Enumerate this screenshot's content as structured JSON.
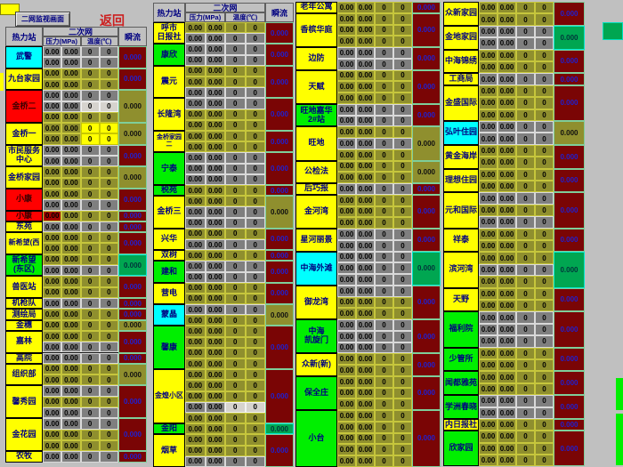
{
  "topbar": {
    "monitor_button": "二网监视画面",
    "return_label": "返回"
  },
  "header_labels": {
    "station": "热力站",
    "network": "二次网",
    "pressure": "压力(MPa)",
    "temperature": "温度(℃)",
    "flow": "瞬流"
  },
  "defaults": {
    "pressure": "0.00",
    "temperature": "0",
    "flow": "0.000"
  },
  "palette": {
    "background": "#c0c0c0",
    "station_yellow": "#ffff00",
    "station_green": "#00ef00",
    "station_cyan": "#00ffff",
    "station_red": "#ff0000",
    "cell_olive": "#8f8f2e",
    "cell_gray": "#7f7f7f",
    "cell_light": "#d6d3ce",
    "cell_alarm_red": "#a40000",
    "flow_maroon": "#7a0505",
    "flow_green": "#00a651",
    "flow_text_blue": "#2020d0",
    "label_navy": "#000080",
    "return_red": "#cc2020"
  },
  "groups": [
    {
      "has_header": true,
      "stations": [
        {
          "name": "武警",
          "bg": "cyan",
          "rows": [
            "g",
            "g"
          ],
          "flow": "maroon"
        },
        {
          "name": "九台家园",
          "bg": "yellow",
          "rows": [
            "o",
            "o"
          ],
          "flow": "maroon"
        },
        {
          "name": "金桥二",
          "bg": "red",
          "rows": [
            "g",
            "l",
            "o"
          ],
          "flow": "olive"
        },
        {
          "name": "金桥一",
          "bg": "yellow",
          "rows": [
            "y",
            "y"
          ],
          "flow": "olive"
        },
        {
          "name": "市民服务\n中心",
          "bg": "yellow",
          "rows": [
            "g",
            "g"
          ],
          "flow": "maroon"
        },
        {
          "name": "金桥家园",
          "bg": "yellow",
          "rows": [
            "o",
            "o"
          ],
          "flow": "olive"
        },
        {
          "name": "小康",
          "bg": "red",
          "rows": [
            "o",
            "g"
          ],
          "flow": "maroon"
        },
        {
          "name": "小康",
          "bg": "red",
          "rows": [
            "a"
          ],
          "flow": "maroon"
        },
        {
          "name": "东苑",
          "bg": "yellow",
          "rows": [
            "g"
          ],
          "flow": "maroon"
        },
        {
          "name": "新希望(西",
          "bg": "yellow",
          "rows": [
            "o",
            "o"
          ],
          "flow": "maroon"
        },
        {
          "name": "新希望\n(东区)",
          "bg": "green",
          "rows": [
            "o",
            "g"
          ],
          "flow": "green"
        },
        {
          "name": "兽医站",
          "bg": "yellow",
          "rows": [
            "o",
            "o"
          ],
          "flow": "maroon"
        },
        {
          "name": "机枪队",
          "bg": "yellow",
          "rows": [
            "g"
          ],
          "flow": "maroon"
        },
        {
          "name": "测绘局",
          "bg": "yellow",
          "rows": [
            "o"
          ],
          "flow": "maroon"
        },
        {
          "name": "金穗",
          "bg": "yellow",
          "rows": [
            "o"
          ],
          "flow": "olive"
        },
        {
          "name": "嘉林",
          "bg": "yellow",
          "rows": [
            "o",
            "g"
          ],
          "flow": "maroon"
        },
        {
          "name": "高院",
          "bg": "yellow",
          "rows": [
            "g"
          ],
          "flow": "maroon"
        },
        {
          "name": "组织部",
          "bg": "yellow",
          "rows": [
            "o",
            "o"
          ],
          "flow": "olive"
        },
        {
          "name": "馨秀园",
          "bg": "yellow",
          "rows": [
            "g",
            "o",
            "g"
          ],
          "flow": "maroon"
        },
        {
          "name": "金花园",
          "bg": "yellow",
          "rows": [
            "g",
            "o",
            "o"
          ],
          "flow": "maroon"
        },
        {
          "name": "农牧",
          "bg": "yellow",
          "rows": [
            "g"
          ],
          "flow": "maroon"
        }
      ]
    },
    {
      "has_header": true,
      "stations": [
        {
          "name": "呼市\n日报社",
          "bg": "yellow",
          "rows": [
            "o",
            "g"
          ],
          "flow": "maroon"
        },
        {
          "name": "康欣",
          "bg": "green",
          "rows": [
            "g",
            "g"
          ],
          "flow": "maroon"
        },
        {
          "name": "震元",
          "bg": "yellow",
          "rows": [
            "o",
            "o",
            "g"
          ],
          "flow": "maroon"
        },
        {
          "name": "长隆湾",
          "bg": "yellow",
          "rows": [
            "g",
            "o",
            "o"
          ],
          "flow": "maroon"
        },
        {
          "name": "金桥家园二",
          "bg": "yellow",
          "rows": [
            "o",
            "o"
          ],
          "flow": "maroon"
        },
        {
          "name": "宁泰",
          "bg": "green",
          "rows": [
            "g",
            "g",
            "g"
          ],
          "flow": "maroon"
        },
        {
          "name": "税苑",
          "bg": "green",
          "rows": [
            "o"
          ],
          "flow": "maroon"
        },
        {
          "name": "金桥三",
          "bg": "yellow",
          "rows": [
            "o",
            "g",
            "g"
          ],
          "flow": "olive"
        },
        {
          "name": "兴华",
          "bg": "yellow",
          "rows": [
            "o",
            "g"
          ],
          "flow": "maroon"
        },
        {
          "name": "双树",
          "bg": "yellow",
          "rows": [
            "o"
          ],
          "flow": "maroon"
        },
        {
          "name": "建和",
          "bg": "green",
          "rows": [
            "g",
            "g"
          ],
          "flow": "maroon"
        },
        {
          "name": "营电",
          "bg": "yellow",
          "rows": [
            "o",
            "o"
          ],
          "flow": "maroon"
        },
        {
          "name": "蒙晶",
          "bg": "cyan",
          "rows": [
            "g",
            "o"
          ],
          "flow": "olive"
        },
        {
          "name": "馨康",
          "bg": "green",
          "rows": [
            "o",
            "o",
            "o",
            "o"
          ],
          "flow": "maroon"
        },
        {
          "name": "金煌小区",
          "bg": "yellow",
          "rows": [
            "o",
            "o",
            "o",
            "l",
            "o"
          ],
          "flow": "maroon"
        },
        {
          "name": "金阳",
          "bg": "green",
          "rows": [
            "o"
          ],
          "flow": "green"
        },
        {
          "name": "烟草",
          "bg": "yellow",
          "rows": [
            "o",
            "o",
            "g"
          ],
          "flow": "maroon"
        }
      ]
    },
    {
      "has_header": false,
      "stations": [
        {
          "name": "老年公寓",
          "bg": "yellow",
          "rows": [
            "o"
          ],
          "flow": "maroon"
        },
        {
          "name": "香槟华庭",
          "bg": "yellow",
          "rows": [
            "o",
            "o",
            "o"
          ],
          "flow": "maroon"
        },
        {
          "name": "边防",
          "bg": "yellow",
          "rows": [
            "g",
            "g"
          ],
          "flow": "maroon"
        },
        {
          "name": "天赋",
          "bg": "yellow",
          "rows": [
            "o",
            "o",
            "o"
          ],
          "flow": "maroon"
        },
        {
          "name": "旺地嘉华\n2#站",
          "bg": "green",
          "rows": [
            "g",
            "g"
          ],
          "flow": "maroon"
        },
        {
          "name": "旺地",
          "bg": "yellow",
          "rows": [
            "o",
            "g",
            "o"
          ],
          "flow": "olive"
        },
        {
          "name": "公检法",
          "bg": "yellow",
          "rows": [
            "o",
            "o"
          ],
          "flow": "olive"
        },
        {
          "name": "后巧报",
          "bg": "yellow",
          "rows": [
            "g"
          ],
          "flow": "maroon"
        },
        {
          "name": "金河湾",
          "bg": "yellow",
          "rows": [
            "o",
            "o",
            "o"
          ],
          "flow": "maroon"
        },
        {
          "name": "星河丽景",
          "bg": "yellow",
          "rows": [
            "g",
            "g"
          ],
          "flow": "maroon"
        },
        {
          "name": "中海外滩",
          "bg": "cyan",
          "rows": [
            "g",
            "g",
            "g"
          ],
          "flow": "green"
        },
        {
          "name": "御龙湾",
          "bg": "yellow",
          "rows": [
            "g",
            "o",
            "o"
          ],
          "flow": "maroon"
        },
        {
          "name": "中海\n凯旋门",
          "bg": "green",
          "rows": [
            "g",
            "g",
            "g"
          ],
          "flow": "maroon"
        },
        {
          "name": "众新(新)",
          "bg": "yellow",
          "rows": [
            "o",
            "o"
          ],
          "flow": "maroon"
        },
        {
          "name": "保全庄",
          "bg": "green",
          "rows": [
            "o",
            "o",
            "o"
          ],
          "flow": "maroon"
        },
        {
          "name": "小台",
          "bg": "green",
          "rows": [
            "o",
            "o",
            "o",
            "o",
            "o"
          ],
          "flow": "maroon"
        }
      ]
    },
    {
      "has_header": false,
      "stations": [
        {
          "name": "众新家园",
          "bg": "yellow",
          "rows": [
            "o",
            "o"
          ],
          "flow": "maroon"
        },
        {
          "name": "金地家园",
          "bg": "yellow",
          "rows": [
            "g",
            "g"
          ],
          "flow": "green"
        },
        {
          "name": "中海锦绣",
          "bg": "yellow",
          "rows": [
            "o",
            "o"
          ],
          "flow": "maroon"
        },
        {
          "name": "工商局",
          "bg": "yellow",
          "rows": [
            "g"
          ],
          "flow": "maroon"
        },
        {
          "name": "金盛国际",
          "bg": "yellow",
          "rows": [
            "o",
            "o",
            "o"
          ],
          "flow": "maroon"
        },
        {
          "name": "弘叶住园",
          "bg": "cyan",
          "rows": [
            "g",
            "g"
          ],
          "flow": "olive"
        },
        {
          "name": "黄金海岸",
          "bg": "yellow",
          "rows": [
            "o",
            "o"
          ],
          "flow": "maroon"
        },
        {
          "name": "理想住园",
          "bg": "yellow",
          "rows": [
            "o",
            "o"
          ],
          "flow": "maroon"
        },
        {
          "name": "元和国际",
          "bg": "yellow",
          "rows": [
            "g",
            "o",
            "g"
          ],
          "flow": "maroon"
        },
        {
          "name": "祥泰",
          "bg": "yellow",
          "rows": [
            "o",
            "o"
          ],
          "flow": "maroon"
        },
        {
          "name": "滨河湾",
          "bg": "yellow",
          "rows": [
            "o",
            "g",
            "o"
          ],
          "flow": "green"
        },
        {
          "name": "天野",
          "bg": "yellow",
          "rows": [
            "o",
            "o"
          ],
          "flow": "maroon"
        },
        {
          "name": "福利院",
          "bg": "green",
          "rows": [
            "g",
            "g",
            "g"
          ],
          "flow": "maroon"
        },
        {
          "name": "少管所",
          "bg": "green",
          "rows": [
            "o",
            "o"
          ],
          "flow": "maroon"
        },
        {
          "name": "闻都雅苑",
          "bg": "green",
          "rows": [
            "o",
            "o"
          ],
          "flow": "maroon"
        },
        {
          "name": "学洲春晓",
          "bg": "green",
          "rows": [
            "g",
            "g"
          ],
          "flow": "maroon"
        },
        {
          "name": "内日报社",
          "bg": "yellow",
          "rows": [
            "o"
          ],
          "flow": "maroon"
        },
        {
          "name": "欣家园",
          "bg": "green",
          "rows": [
            "o",
            "o",
            "o"
          ],
          "flow": "maroon"
        }
      ]
    }
  ]
}
